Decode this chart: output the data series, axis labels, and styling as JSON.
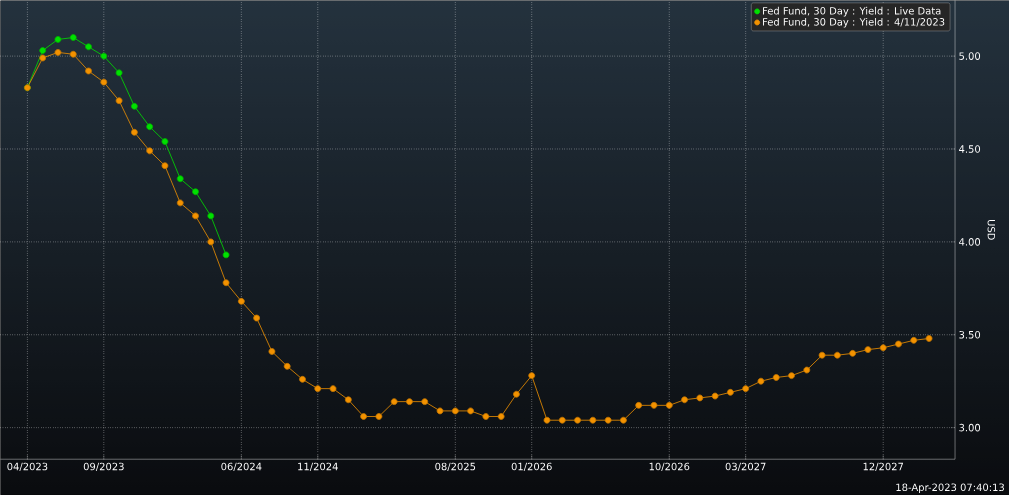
{
  "chart_data": {
    "type": "line",
    "ylabel": "USD",
    "x": [
      "2023-04",
      "2023-05",
      "2023-06",
      "2023-07",
      "2023-08",
      "2023-09",
      "2023-10",
      "2023-11",
      "2023-12",
      "2024-01",
      "2024-02",
      "2024-03",
      "2024-04",
      "2024-05",
      "2024-06",
      "2024-07",
      "2024-08",
      "2024-09",
      "2024-10",
      "2024-11",
      "2024-12",
      "2025-01",
      "2025-02",
      "2025-03",
      "2025-04",
      "2025-05",
      "2025-06",
      "2025-07",
      "2025-08",
      "2025-09",
      "2025-10",
      "2025-11",
      "2025-12",
      "2026-01",
      "2026-02",
      "2026-03",
      "2026-04",
      "2026-05",
      "2026-06",
      "2026-07",
      "2026-08",
      "2026-09",
      "2026-10",
      "2026-11",
      "2026-12",
      "2027-01",
      "2027-02",
      "2027-03",
      "2027-04",
      "2027-05",
      "2027-06",
      "2027-07",
      "2027-08",
      "2027-09",
      "2027-10",
      "2027-11",
      "2027-12",
      "2028-01",
      "2028-02",
      "2028-03"
    ],
    "series": [
      {
        "name": "Fed Fund, 30 Day : Yield : Live Data",
        "color": "#00e000",
        "values": [
          4.83,
          5.03,
          5.09,
          5.1,
          5.05,
          5.0,
          4.91,
          4.73,
          4.62,
          4.54,
          4.34,
          4.27,
          4.14,
          3.93,
          null,
          null,
          null,
          null,
          null,
          null,
          null,
          null,
          null,
          null,
          null,
          null,
          null,
          null,
          null,
          null,
          null,
          null,
          null,
          null,
          null,
          null,
          null,
          null,
          null,
          null,
          null,
          null,
          null,
          null,
          null,
          null,
          null,
          null,
          null,
          null,
          null,
          null,
          null,
          null,
          null,
          null,
          null,
          null,
          null,
          null
        ]
      },
      {
        "name": "Fed Fund, 30 Day : Yield : 4/11/2023",
        "color": "#f39200",
        "values": [
          4.83,
          4.99,
          5.02,
          5.01,
          4.92,
          4.86,
          4.76,
          4.59,
          4.49,
          4.41,
          4.21,
          4.14,
          4.0,
          3.78,
          3.68,
          3.59,
          3.41,
          3.33,
          3.26,
          3.21,
          3.21,
          3.15,
          3.06,
          3.06,
          3.14,
          3.14,
          3.14,
          3.09,
          3.09,
          3.09,
          3.06,
          3.06,
          3.18,
          3.28,
          3.04,
          3.04,
          3.04,
          3.04,
          3.04,
          3.04,
          3.12,
          3.12,
          3.12,
          3.15,
          3.16,
          3.17,
          3.19,
          3.21,
          3.25,
          3.27,
          3.28,
          3.31,
          3.39,
          3.39,
          3.4,
          3.42,
          3.43,
          3.45,
          3.47,
          3.48
        ]
      }
    ],
    "xlim": [
      "2023-02-08",
      "2028-04-22"
    ],
    "ylim": [
      2.83,
      5.3
    ],
    "xticks": [
      {
        "value": "2023-04",
        "label": "04/2023"
      },
      {
        "value": "2023-09",
        "label": "09/2023"
      },
      {
        "value": "2024-06",
        "label": "06/2024"
      },
      {
        "value": "2024-11",
        "label": "11/2024"
      },
      {
        "value": "2025-08",
        "label": "08/2025"
      },
      {
        "value": "2026-01",
        "label": "01/2026"
      },
      {
        "value": "2026-10",
        "label": "10/2026"
      },
      {
        "value": "2027-03",
        "label": "03/2027"
      },
      {
        "value": "2027-12",
        "label": "12/2027"
      }
    ],
    "yticks": [
      {
        "value": 3.0,
        "label": "3.00"
      },
      {
        "value": 3.5,
        "label": "3.50"
      },
      {
        "value": 4.0,
        "label": "4.00"
      },
      {
        "value": 4.5,
        "label": "4.50"
      },
      {
        "value": 5.0,
        "label": "5.00"
      }
    ],
    "grid": true,
    "legend": "top right",
    "marker": "circle",
    "line_style": "solid",
    "annotations": [
      "18-Apr-2023 07:40:13"
    ]
  }
}
